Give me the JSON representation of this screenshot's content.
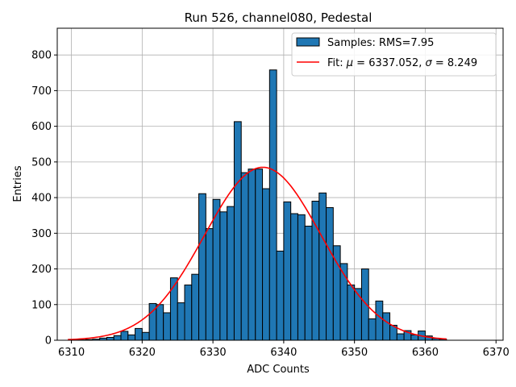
{
  "chart_data": {
    "type": "bar",
    "title": "Run 526, channel080, Pedestal",
    "xlabel": "ADC Counts",
    "ylabel": "Entries",
    "xlim": [
      6308,
      6371
    ],
    "ylim": [
      0,
      875
    ],
    "x_ticks": [
      6310,
      6320,
      6330,
      6340,
      6350,
      6360,
      6370
    ],
    "y_ticks": [
      0,
      100,
      200,
      300,
      400,
      500,
      600,
      700,
      800
    ],
    "grid": true,
    "legend_placement": "top-right",
    "bin_edges": [
      6310,
      6311,
      6312,
      6313,
      6314,
      6315,
      6316,
      6317,
      6318,
      6319,
      6320,
      6321,
      6322,
      6323,
      6324,
      6325,
      6326,
      6327,
      6328,
      6329,
      6330,
      6331,
      6332,
      6333,
      6334,
      6335,
      6336,
      6337,
      6338,
      6339,
      6340,
      6341,
      6342,
      6343,
      6344,
      6345,
      6346,
      6347,
      6348,
      6349,
      6350,
      6351,
      6352,
      6353,
      6354,
      6355,
      6356,
      6357,
      6358,
      6359,
      6360,
      6361,
      6362,
      6363
    ],
    "series": [
      {
        "name": "Samples: RMS=7.95",
        "kind": "histogram",
        "color": "#1f77b4",
        "edgecolor": "#000000",
        "values": [
          1,
          1,
          2,
          3,
          6,
          8,
          13,
          25,
          15,
          33,
          22,
          103,
          100,
          77,
          175,
          105,
          155,
          185,
          411,
          313,
          395,
          360,
          375,
          613,
          470,
          480,
          480,
          425,
          758,
          250,
          388,
          355,
          352,
          320,
          390,
          413,
          372,
          265,
          215,
          155,
          145,
          200,
          60,
          110,
          77,
          42,
          18,
          27,
          15,
          26,
          12,
          5,
          3
        ]
      },
      {
        "name": "Fit: μ = 6337.052, σ = 8.249",
        "kind": "gaussian-fit",
        "color": "#ff0000",
        "mu": 6337.052,
        "sigma": 8.249,
        "amplitude": 485,
        "x_range": [
          6309.5,
          6363
        ]
      }
    ],
    "legend_labels": {
      "samples": "Samples: RMS=7.95",
      "fit_prefix": "Fit: ",
      "mu_symbol": "μ",
      "mu_text": " = 6337.052, ",
      "sigma_symbol": "σ",
      "sigma_text": " = 8.249"
    }
  }
}
